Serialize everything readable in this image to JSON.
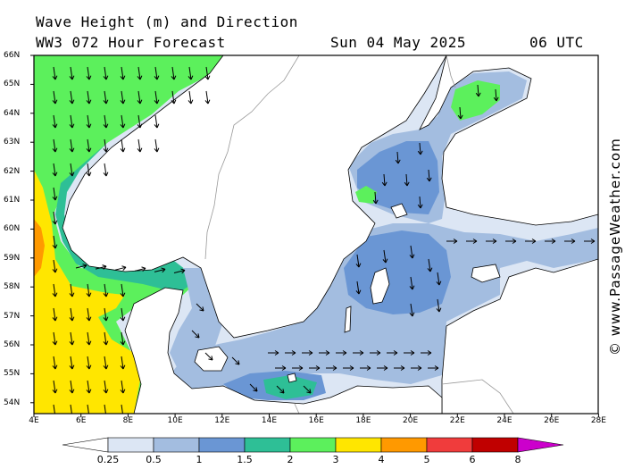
{
  "header": {
    "line1": "Wave Height (m) and Direction",
    "line2": "WW3 072 Hour Forecast",
    "date": "Sun 04 May 2025",
    "time": "06 UTC"
  },
  "axes": {
    "lat_labels": [
      "66N",
      "65N",
      "64N",
      "63N",
      "62N",
      "61N",
      "60N",
      "59N",
      "58N",
      "57N",
      "56N",
      "55N",
      "54N"
    ],
    "lon_labels": [
      "4E",
      "6E",
      "8E",
      "10E",
      "12E",
      "14E",
      "16E",
      "18E",
      "20E",
      "22E",
      "24E",
      "26E",
      "28E"
    ]
  },
  "credit": "© www.PassageWeather.com",
  "legend": {
    "colors": [
      "#ffffff",
      "#dce6f4",
      "#a3bde0",
      "#6a96d4",
      "#2ebf96",
      "#5cf05c",
      "#ffe600",
      "#ff9900",
      "#f03c3c",
      "#c00000",
      "#cc00cc"
    ],
    "labels": [
      "0.25",
      "0.5",
      "1",
      "1.5",
      "2",
      "3",
      "4",
      "5",
      "6",
      "8"
    ]
  },
  "colors": {
    "land": "#ffffff",
    "coast": "#000000",
    "border": "#999999",
    "arrow": "#000000"
  }
}
